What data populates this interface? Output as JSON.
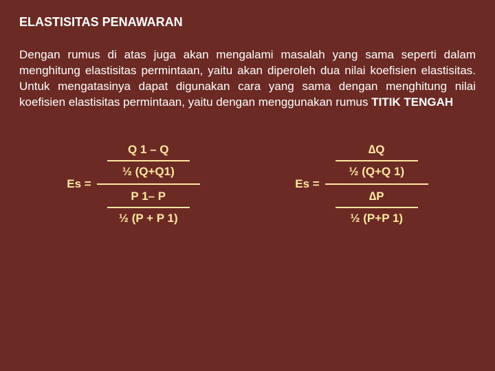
{
  "title": "ELASTISITAS PENAWARAN",
  "paragraph_parts": {
    "p1": "Dengan rumus di atas juga akan mengalami masalah yang sama seperti dalam menghitung elastisitas permintaan, yaitu akan diperoleh dua nilai koefisien elastisitas. Untuk mengatasinya dapat digunakan cara yang sama dengan menghitung nilai koefisien elastisitas permintaan, yaitu dengan menggunakan rumus ",
    "p2": "TITIK TENGAH"
  },
  "colors": {
    "background": "#6b2a24",
    "text": "#ffffff",
    "formula": "#ffe7a3"
  },
  "formula_left": {
    "es": "Es =",
    "top_num": "Q 1 – Q",
    "top_den": "½ (Q+Q1)",
    "bot_num": "P 1– P",
    "bot_den": "½ (P + P 1)"
  },
  "formula_right": {
    "es": "Es =",
    "top_num": "∆Q",
    "top_den": "½ (Q+Q 1)",
    "bot_num": "∆P",
    "bot_den": "½ (P+P 1)"
  }
}
